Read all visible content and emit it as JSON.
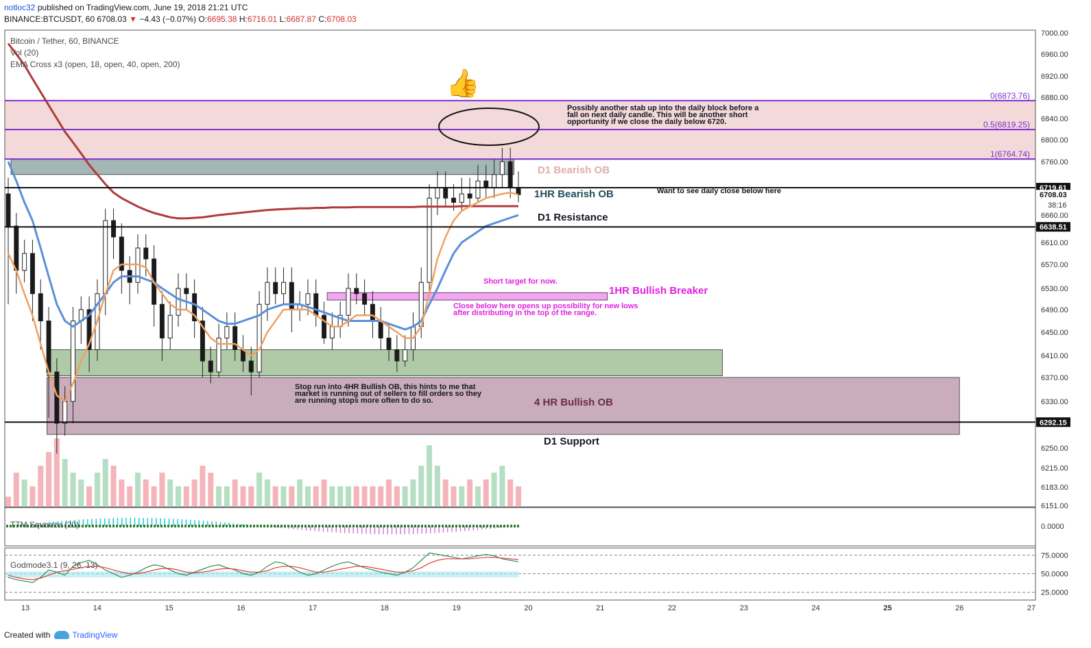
{
  "header": {
    "author": "notloc32",
    "published": "published on TradingView.com, June 19, 2018 21:21 UTC",
    "symbol": "BINANCE:BTCUSDT, 60",
    "last": "6708.03",
    "arrow": "▼",
    "change": "−4.43 (−0.07%)",
    "o_label": "O:",
    "o_value": "6695.38",
    "h_label": "H:",
    "h_value": "6716.01",
    "l_label": "L:",
    "l_value": "6687.87",
    "c_label": "C:",
    "c_value": "6708.03"
  },
  "legend": {
    "title": "Bitcoin / Tether, 60, BINANCE",
    "vol": "Vol (20)",
    "ema": "EMA Cross x3 (open, 18, open, 40, open, 200)"
  },
  "subpanes": {
    "ttm": "TTM Squeeze (20)",
    "godmode": "Godmode3.1 (9, 26, 13)"
  },
  "footer": {
    "created": "Created with",
    "brand": "TradingView"
  },
  "colors": {
    "up": "#4a4a4a",
    "down": "#1a1a1a",
    "ema18": "#f0a060",
    "ema40": "#5b8fd9",
    "ema200": "#b03a3a",
    "fib": "#7b2fd0",
    "magenta": "#e020e0",
    "bearish_ob": "#7d9896",
    "supply_zone": "#f0cfcf",
    "bullish_ob_green": "#8fb381",
    "bullish_ob_4h": "#b28a9f"
  },
  "chart_data": {
    "type": "candlestick",
    "symbol": "BINANCE:BTCUSDT",
    "timeframe": "60",
    "ylim": [
      6151,
      7000
    ],
    "y_ticks": [
      "7000.00",
      "6960.00",
      "6920.00",
      "6880.00",
      "6840.00",
      "6800.00",
      "6760.00",
      "6710.00",
      "6660.00",
      "6610.00",
      "6570.00",
      "6530.00",
      "6490.00",
      "6450.00",
      "6410.00",
      "6370.00",
      "6330.00",
      "6290.00",
      "6250.00",
      "6215.00",
      "6183.00",
      "6151.00"
    ],
    "x_ticks": [
      "13",
      "14",
      "15",
      "16",
      "17",
      "18",
      "19",
      "20",
      "21",
      "22",
      "23",
      "24",
      "25",
      "26",
      "27"
    ],
    "price_labels": [
      {
        "value": 6719.61,
        "text": "6719.61"
      },
      {
        "value": 6708.03,
        "text": "6708.03",
        "extra": "38:16"
      },
      {
        "value": 6638.51,
        "text": "6638.51"
      },
      {
        "value": 6292.15,
        "text": "6292.15"
      }
    ],
    "candles": [
      [
        6710,
        6640,
        6500
      ],
      [
        6640,
        6560,
        6520
      ],
      [
        6560,
        6590,
        6540
      ],
      [
        6590,
        6520,
        6470
      ],
      [
        6520,
        6470,
        6420
      ],
      [
        6470,
        6380,
        6300
      ],
      [
        6380,
        6290,
        6240
      ],
      [
        6290,
        6330,
        6270
      ],
      [
        6330,
        6470,
        6290
      ],
      [
        6470,
        6490,
        6430
      ],
      [
        6490,
        6420,
        6380
      ],
      [
        6420,
        6520,
        6400
      ],
      [
        6520,
        6650,
        6480
      ],
      [
        6650,
        6620,
        6580
      ],
      [
        6620,
        6560,
        6520
      ],
      [
        6560,
        6540,
        6500
      ],
      [
        6540,
        6600,
        6520
      ],
      [
        6600,
        6580,
        6550
      ],
      [
        6580,
        6500,
        6460
      ],
      [
        6500,
        6440,
        6400
      ],
      [
        6440,
        6480,
        6420
      ],
      [
        6480,
        6530,
        6460
      ],
      [
        6530,
        6520,
        6490
      ],
      [
        6520,
        6470,
        6440
      ],
      [
        6470,
        6400,
        6370
      ],
      [
        6400,
        6380,
        6360
      ],
      [
        6380,
        6440,
        6370
      ],
      [
        6440,
        6460,
        6420
      ],
      [
        6460,
        6420,
        6400
      ],
      [
        6420,
        6400,
        6380
      ],
      [
        6400,
        6380,
        6340
      ],
      [
        6380,
        6500,
        6370
      ],
      [
        6500,
        6540,
        6470
      ],
      [
        6540,
        6520,
        6500
      ],
      [
        6520,
        6540,
        6500
      ],
      [
        6540,
        6490,
        6450
      ],
      [
        6490,
        6500,
        6470
      ],
      [
        6500,
        6520,
        6480
      ],
      [
        6520,
        6480,
        6460
      ],
      [
        6480,
        6440,
        6430
      ],
      [
        6440,
        6460,
        6420
      ],
      [
        6460,
        6480,
        6440
      ],
      [
        6480,
        6530,
        6460
      ],
      [
        6530,
        6520,
        6500
      ],
      [
        6520,
        6500,
        6480
      ],
      [
        6500,
        6470,
        6440
      ],
      [
        6470,
        6440,
        6420
      ],
      [
        6440,
        6420,
        6400
      ],
      [
        6420,
        6400,
        6380
      ],
      [
        6400,
        6420,
        6390
      ],
      [
        6420,
        6460,
        6400
      ],
      [
        6460,
        6540,
        6440
      ],
      [
        6540,
        6700,
        6520
      ],
      [
        6700,
        6720,
        6660
      ],
      [
        6720,
        6700,
        6680
      ],
      [
        6700,
        6690,
        6670
      ],
      [
        6690,
        6710,
        6670
      ],
      [
        6710,
        6700,
        6680
      ],
      [
        6700,
        6730,
        6690
      ],
      [
        6730,
        6720,
        6700
      ],
      [
        6720,
        6740,
        6700
      ],
      [
        6740,
        6760,
        6720
      ],
      [
        6760,
        6720,
        6700
      ],
      [
        6720,
        6708,
        6690
      ]
    ],
    "ema18": [
      6590,
      6560,
      6520,
      6480,
      6430,
      6380,
      6340,
      6330,
      6360,
      6400,
      6430,
      6470,
      6520,
      6560,
      6570,
      6570,
      6570,
      6565,
      6540,
      6520,
      6500,
      6490,
      6490,
      6480,
      6460,
      6440,
      6430,
      6430,
      6430,
      6420,
      6410,
      6420,
      6450,
      6470,
      6490,
      6490,
      6490,
      6490,
      6480,
      6470,
      6460,
      6460,
      6470,
      6480,
      6480,
      6480,
      6470,
      6460,
      6450,
      6440,
      6440,
      6460,
      6520,
      6580,
      6620,
      6650,
      6670,
      6680,
      6690,
      6700,
      6705,
      6710,
      6712,
      6708
    ],
    "ema40": [
      6760,
      6730,
      6690,
      6650,
      6600,
      6550,
      6500,
      6470,
      6460,
      6470,
      6480,
      6500,
      6520,
      6540,
      6550,
      6550,
      6550,
      6545,
      6540,
      6530,
      6520,
      6510,
      6505,
      6500,
      6490,
      6480,
      6470,
      6465,
      6465,
      6470,
      6475,
      6480,
      6490,
      6495,
      6500,
      6500,
      6500,
      6495,
      6490,
      6485,
      6480,
      6475,
      6470,
      6470,
      6470,
      6470,
      6470,
      6465,
      6460,
      6455,
      6460,
      6470,
      6500,
      6530,
      6560,
      6590,
      6610,
      6620,
      6630,
      6640,
      6645,
      6650,
      6655,
      6660
    ],
    "ema200": [
      6980,
      6960,
      6940,
      6915,
      6890,
      6865,
      6840,
      6815,
      6795,
      6775,
      6755,
      6740,
      6725,
      6712,
      6700,
      6690,
      6680,
      6672,
      6665,
      6660,
      6656,
      6654,
      6654,
      6655,
      6656,
      6658,
      6660,
      6662,
      6664,
      6666,
      6668,
      6670,
      6672,
      6673,
      6674,
      6675,
      6676,
      6676,
      6677,
      6677,
      6678,
      6678,
      6678,
      6679,
      6679,
      6679,
      6679,
      6679,
      6679,
      6679,
      6679,
      6680,
      6680,
      6680,
      6680,
      6680,
      6681,
      6681,
      6681,
      6681,
      6681,
      6681,
      6681,
      6681
    ],
    "volume_height": [
      0.15,
      0.5,
      0.4,
      0.3,
      0.6,
      0.8,
      1.0,
      0.7,
      0.5,
      0.4,
      0.3,
      0.5,
      0.7,
      0.6,
      0.4,
      0.3,
      0.5,
      0.4,
      0.3,
      0.5,
      0.4,
      0.3,
      0.3,
      0.4,
      0.6,
      0.5,
      0.3,
      0.3,
      0.4,
      0.3,
      0.3,
      0.5,
      0.4,
      0.3,
      0.3,
      0.3,
      0.4,
      0.3,
      0.3,
      0.4,
      0.3,
      0.3,
      0.3,
      0.3,
      0.3,
      0.3,
      0.3,
      0.4,
      0.3,
      0.3,
      0.4,
      0.6,
      0.9,
      0.6,
      0.4,
      0.3,
      0.3,
      0.4,
      0.3,
      0.4,
      0.5,
      0.6,
      0.4,
      0.3
    ],
    "zones": [
      {
        "name": "fib-zone",
        "top": 6873.76,
        "bottom": 6764.74,
        "color": "#f0cfcf"
      },
      {
        "name": "D1 Bearish OB",
        "top": 6764.74,
        "bottom": 6740,
        "color": "#7d9896",
        "x_start_day": 12.8,
        "x_end_day": 19.8
      },
      {
        "name": "1HR Bullish Breaker",
        "top": 6522,
        "bottom": 6508,
        "color": "#f080f0",
        "x_start_day": 17.2,
        "x_end_day": 21.1
      },
      {
        "name": "Green Bullish OB",
        "top": 6420,
        "bottom": 6373,
        "color": "#8fb381",
        "x_start_day": 13.3,
        "x_end_day": 22.7
      },
      {
        "name": "4 HR Bullish OB",
        "top": 6370,
        "bottom": 6272,
        "color": "#b28a9f",
        "x_start_day": 13.3,
        "x_end_day": 26.0
      }
    ],
    "fib_levels": [
      {
        "level": "0",
        "value": 6873.76,
        "label": "0(6873.76)"
      },
      {
        "level": "0.5",
        "value": 6819.25,
        "label": "0.5(6819.25)"
      },
      {
        "level": "1",
        "value": 6764.74,
        "label": "1(6764.74)"
      }
    ],
    "horizontal_lines": [
      6719.61,
      6638.51,
      6292.15
    ],
    "annotations": [
      {
        "text": "D1 Bearish OB",
        "color": "#e0b0a8"
      },
      {
        "text": "1HR Bearish OB",
        "color": "#1f4f5a"
      },
      {
        "text": "D1 Resistance",
        "color": "#131722"
      },
      {
        "text": "Want to see daily close below here",
        "color": "#131722"
      },
      {
        "text": "Short target for now.",
        "color": "#e020e0"
      },
      {
        "text": "1HR Bullish Breaker",
        "color": "#e020e0"
      },
      {
        "text": "Close below here opens up possibility for new lows",
        "color": "#e020e0"
      },
      {
        "text": "after distributing in the top of the range.",
        "color": "#e020e0"
      },
      {
        "text": "Possibly another stab up into the daily block before a",
        "color": "#131722"
      },
      {
        "text": "fall on next daily candle. This will be another short",
        "color": "#131722"
      },
      {
        "text": "opportunity if we close the daily below 6720.",
        "color": "#131722"
      },
      {
        "text": "Stop run into 4HR Bullish OB, this hints to me that",
        "color": "#131722"
      },
      {
        "text": "market is running out of sellers to fill orders so they",
        "color": "#131722"
      },
      {
        "text": "are running stops more often to do so.",
        "color": "#131722"
      },
      {
        "text": "4 HR Bullish OB",
        "color": "#6a2a4a"
      },
      {
        "text": "D1 Support",
        "color": "#131722"
      }
    ],
    "ttm_ticks": [
      "0.0000"
    ],
    "godmode_ticks": [
      "75.0000",
      "50.0000",
      "25.0000"
    ],
    "godmode_levels": [
      75,
      50,
      25
    ],
    "godmode_line1": [
      45,
      42,
      40,
      38,
      45,
      55,
      52,
      48,
      60,
      65,
      68,
      62,
      55,
      50,
      45,
      48,
      52,
      58,
      62,
      60,
      55,
      50,
      48,
      52,
      56,
      60,
      62,
      58,
      55,
      50,
      48,
      52,
      60,
      66,
      64,
      58,
      52,
      48,
      50,
      55,
      60,
      64,
      66,
      62,
      58,
      55,
      52,
      50,
      48,
      52,
      58,
      68,
      78,
      76,
      74,
      72,
      70,
      72,
      74,
      76,
      74,
      70,
      68,
      66
    ],
    "godmode_line2": [
      48,
      45,
      43,
      42,
      44,
      48,
      52,
      54,
      56,
      58,
      60,
      60,
      58,
      55,
      52,
      50,
      50,
      52,
      55,
      57,
      57,
      55,
      52,
      51,
      52,
      54,
      56,
      57,
      56,
      54,
      52,
      52,
      54,
      58,
      60,
      60,
      58,
      55,
      52,
      52,
      54,
      56,
      58,
      60,
      60,
      58,
      56,
      54,
      52,
      52,
      54,
      58,
      64,
      68,
      70,
      70,
      70,
      70,
      71,
      72,
      72,
      71,
      70,
      69
    ]
  }
}
